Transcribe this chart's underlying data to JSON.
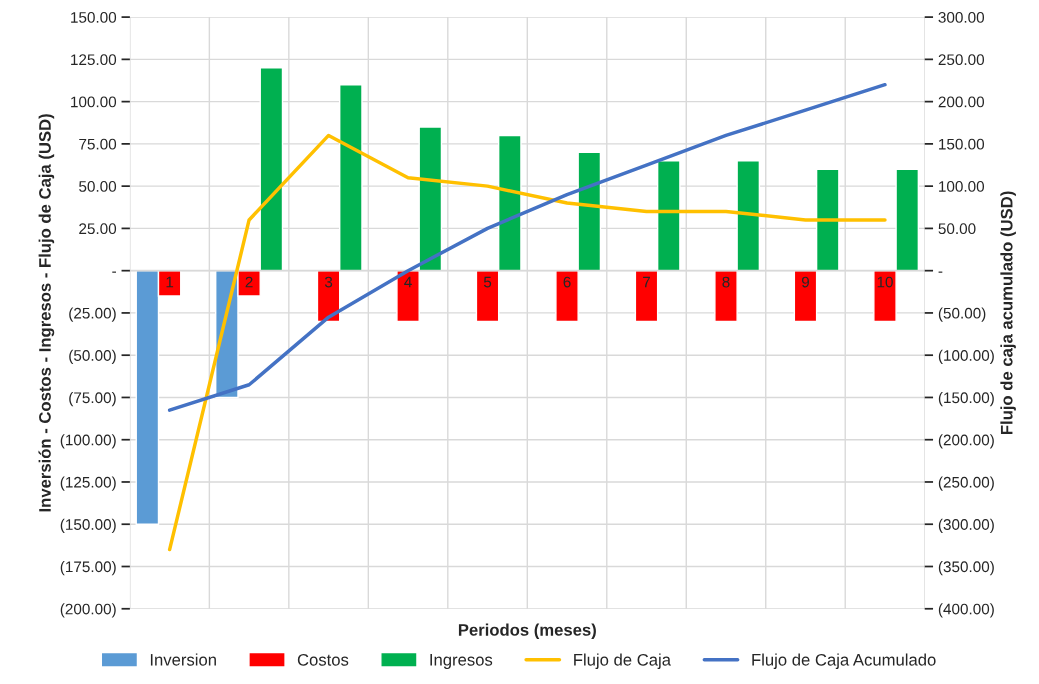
{
  "chart_data": {
    "type": "bar",
    "xlabel": "Periodos (meses)",
    "ylabel": "Inversión - Costos - Ingresos - Flujo de Caja (USD)",
    "y2label": "Flujo de caja acumulado (USD)",
    "categories": [
      "1",
      "2",
      "3",
      "4",
      "5",
      "6",
      "7",
      "8",
      "9",
      "10"
    ],
    "series": [
      {
        "name": "Inversion",
        "color": "#5b9bd5",
        "values": [
          -150,
          -75,
          null,
          null,
          null,
          null,
          null,
          null,
          null,
          null
        ]
      },
      {
        "name": "Costos",
        "color": "#ff0000",
        "values": [
          -15,
          -15,
          -30,
          -30,
          -30,
          -30,
          -30,
          -30,
          -30,
          -30
        ]
      },
      {
        "name": "Ingresos",
        "color": "#00b050",
        "values": [
          null,
          120,
          110,
          85,
          80,
          70,
          65,
          65,
          60,
          60
        ]
      },
      {
        "name": "Flujo de Caja",
        "type": "line",
        "color": "#ffc000",
        "values": [
          -165,
          30,
          80,
          55,
          50,
          40,
          35,
          35,
          30,
          30
        ]
      },
      {
        "name": "Flujo de Caja Acumulado",
        "type": "line",
        "axis": "y2",
        "color": "#4472c4",
        "values": [
          -165,
          -135,
          -55,
          0,
          50,
          90,
          125,
          160,
          190,
          220
        ]
      }
    ],
    "ylim": [
      -200,
      150
    ],
    "yticks": [
      {
        "value": -200,
        "label": "(200.00)"
      },
      {
        "value": -175,
        "label": "(175.00)"
      },
      {
        "value": -150,
        "label": "(150.00)"
      },
      {
        "value": -125,
        "label": "(125.00)"
      },
      {
        "value": -100,
        "label": "(100.00)"
      },
      {
        "value": -75,
        "label": "(75.00)"
      },
      {
        "value": -50,
        "label": "(50.00)"
      },
      {
        "value": -25,
        "label": "(25.00)"
      },
      {
        "value": 0,
        "label": "-"
      },
      {
        "value": 25,
        "label": "25.00"
      },
      {
        "value": 50,
        "label": "50.00"
      },
      {
        "value": 75,
        "label": "75.00"
      },
      {
        "value": 100,
        "label": "100.00"
      },
      {
        "value": 125,
        "label": "125.00"
      },
      {
        "value": 150,
        "label": "150.00"
      }
    ],
    "y2lim": [
      -400,
      300
    ],
    "y2ticks": [
      {
        "value": -400,
        "label": "(400.00)"
      },
      {
        "value": -350,
        "label": "(350.00)"
      },
      {
        "value": -300,
        "label": "(300.00)"
      },
      {
        "value": -250,
        "label": "(250.00)"
      },
      {
        "value": -200,
        "label": "(200.00)"
      },
      {
        "value": -150,
        "label": "(150.00)"
      },
      {
        "value": -100,
        "label": "(100.00)"
      },
      {
        "value": -50,
        "label": "(50.00)"
      },
      {
        "value": 0,
        "label": "-"
      },
      {
        "value": 50,
        "label": "50.00"
      },
      {
        "value": 100,
        "label": "100.00"
      },
      {
        "value": 150,
        "label": "150.00"
      },
      {
        "value": 200,
        "label": "200.00"
      },
      {
        "value": 250,
        "label": "250.00"
      },
      {
        "value": 300,
        "label": "300.00"
      }
    ],
    "grid": true,
    "legend": "bottom",
    "marker": "none",
    "line_style": "solid"
  }
}
